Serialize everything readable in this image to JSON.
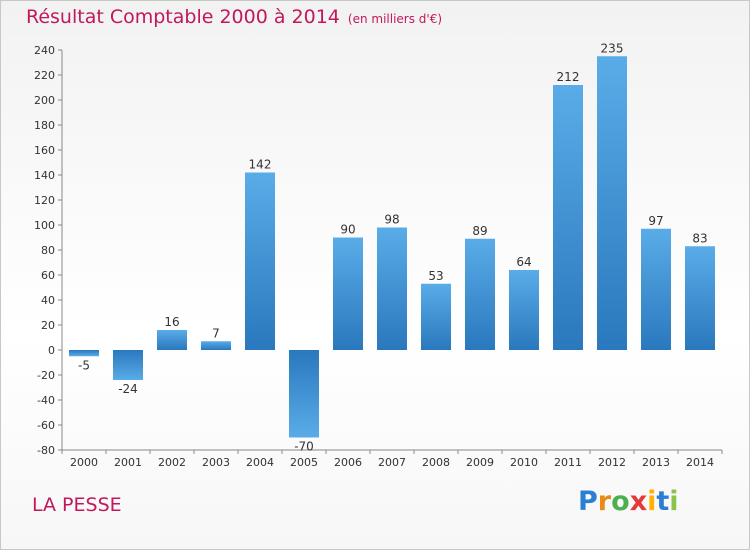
{
  "title": "Résultat Comptable 2000 à 2014",
  "subtitle": "(en milliers d'€)",
  "commune": "LA PESSE",
  "logo": {
    "letters": [
      "P",
      "r",
      "o",
      "x",
      "i",
      "t",
      "i"
    ],
    "colors": [
      "#2a7fd4",
      "#e88a1a",
      "#4caf50",
      "#e53935",
      "#ffb300",
      "#2a7fd4",
      "#8bc34a"
    ]
  },
  "colors": {
    "bar_light": "#5aace8",
    "bar_dark": "#2a78bd",
    "title": "#c2185b",
    "grid": "#dddddd"
  },
  "chart_data": {
    "type": "bar",
    "categories": [
      "2000",
      "2001",
      "2002",
      "2003",
      "2004",
      "2005",
      "2006",
      "2007",
      "2008",
      "2009",
      "2010",
      "2011",
      "2012",
      "2013",
      "2014"
    ],
    "values": [
      -5,
      -24,
      16,
      7,
      142,
      -70,
      90,
      98,
      53,
      89,
      64,
      212,
      235,
      97,
      83
    ],
    "title": "Résultat Comptable 2000 à 2014",
    "ylim": [
      -80,
      240
    ],
    "yticks": [
      -80,
      -60,
      -40,
      -20,
      0,
      20,
      40,
      60,
      80,
      100,
      120,
      140,
      160,
      180,
      200,
      220,
      240
    ],
    "grid": false,
    "legend": "none"
  }
}
